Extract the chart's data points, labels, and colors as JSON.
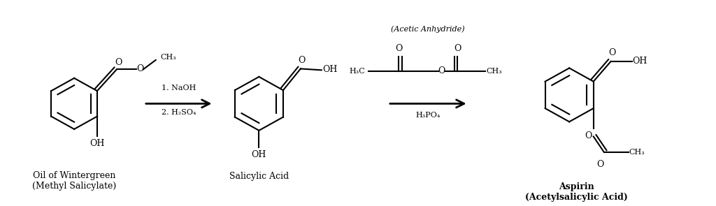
{
  "background_color": "#ffffff",
  "title": "",
  "figsize": [
    10.24,
    2.95
  ],
  "dpi": 100,
  "label1": "Oil of Wintergreen\n(Methyl Salicylate)",
  "label2": "Salicylic Acid",
  "label3": "Aspirin\n(Acetylsalicylic Acid)",
  "arrow1_top": "1. NaOH",
  "arrow1_bot": "2. H₂SO₄",
  "arrow2_top": "(Acetic Anhydride)",
  "arrow2_bot": "H₃PO₄",
  "font_size_label": 9,
  "font_size_chem": 9,
  "font_size_small": 8,
  "line_color": "#000000",
  "line_width": 1.5
}
